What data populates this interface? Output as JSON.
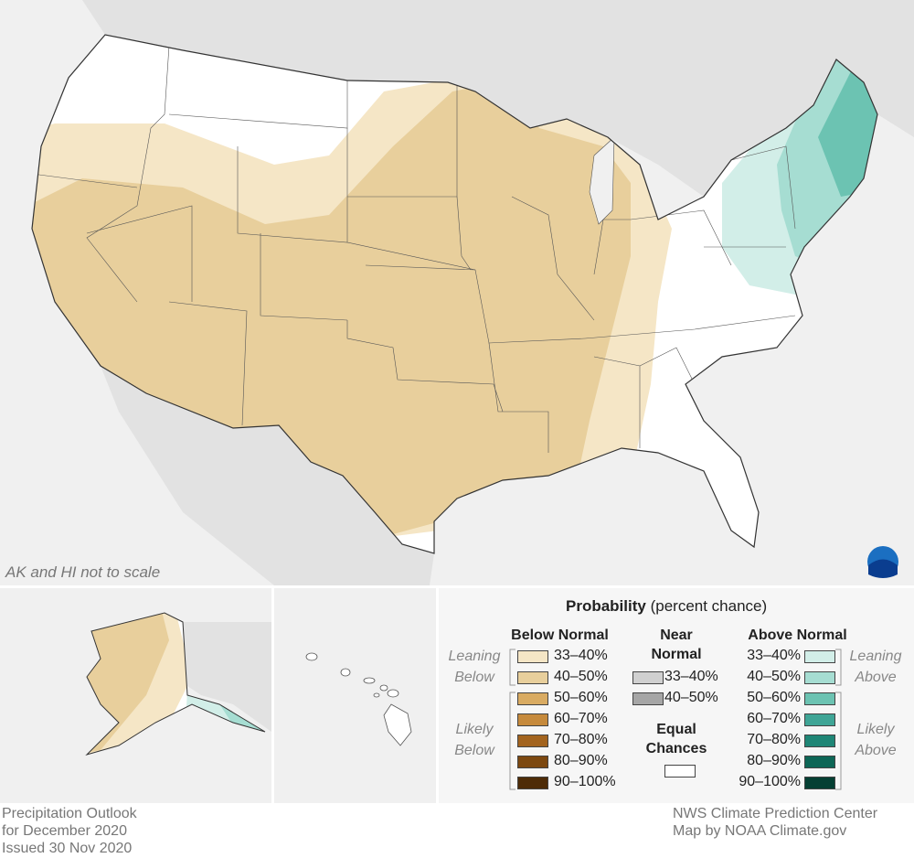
{
  "map_note": "AK and HI not to scale",
  "legend": {
    "title": "Probability",
    "subtitle": "(percent chance)",
    "below": {
      "heading": "Below Normal",
      "leaning": "Leaning Below",
      "likely": "Likely Below",
      "items": [
        {
          "label": "33–40%",
          "color": "#f5e6c6"
        },
        {
          "label": "40–50%",
          "color": "#e8cf9c"
        },
        {
          "label": "50–60%",
          "color": "#d9ab62"
        },
        {
          "label": "60–70%",
          "color": "#c68a3c"
        },
        {
          "label": "70–80%",
          "color": "#a3641f"
        },
        {
          "label": "80–90%",
          "color": "#7d4911"
        },
        {
          "label": "90–100%",
          "color": "#4e2c08"
        }
      ]
    },
    "near": {
      "heading": "Near Normal",
      "items": [
        {
          "label": "33–40%",
          "color": "#d0d0d0"
        },
        {
          "label": "40–50%",
          "color": "#a6a6a6"
        }
      ]
    },
    "equal": {
      "heading": "Equal Chances",
      "color": "#ffffff"
    },
    "above": {
      "heading": "Above Normal",
      "leaning": "Leaning Above",
      "likely": "Likely Above",
      "items": [
        {
          "label": "33–40%",
          "color": "#d2eee8"
        },
        {
          "label": "40–50%",
          "color": "#a6ddd2"
        },
        {
          "label": "50–60%",
          "color": "#6cc3b2"
        },
        {
          "label": "60–70%",
          "color": "#3fa596"
        },
        {
          "label": "70–80%",
          "color": "#1f8676"
        },
        {
          "label": "80–90%",
          "color": "#0d6656"
        },
        {
          "label": "90–100%",
          "color": "#053f33"
        }
      ]
    }
  },
  "footer": {
    "left": [
      "Precipitation Outlook",
      "for December 2020",
      "Issued 30 Nov 2020"
    ],
    "right": [
      "NWS Climate Prediction Center",
      "Map by NOAA Climate.gov"
    ]
  }
}
